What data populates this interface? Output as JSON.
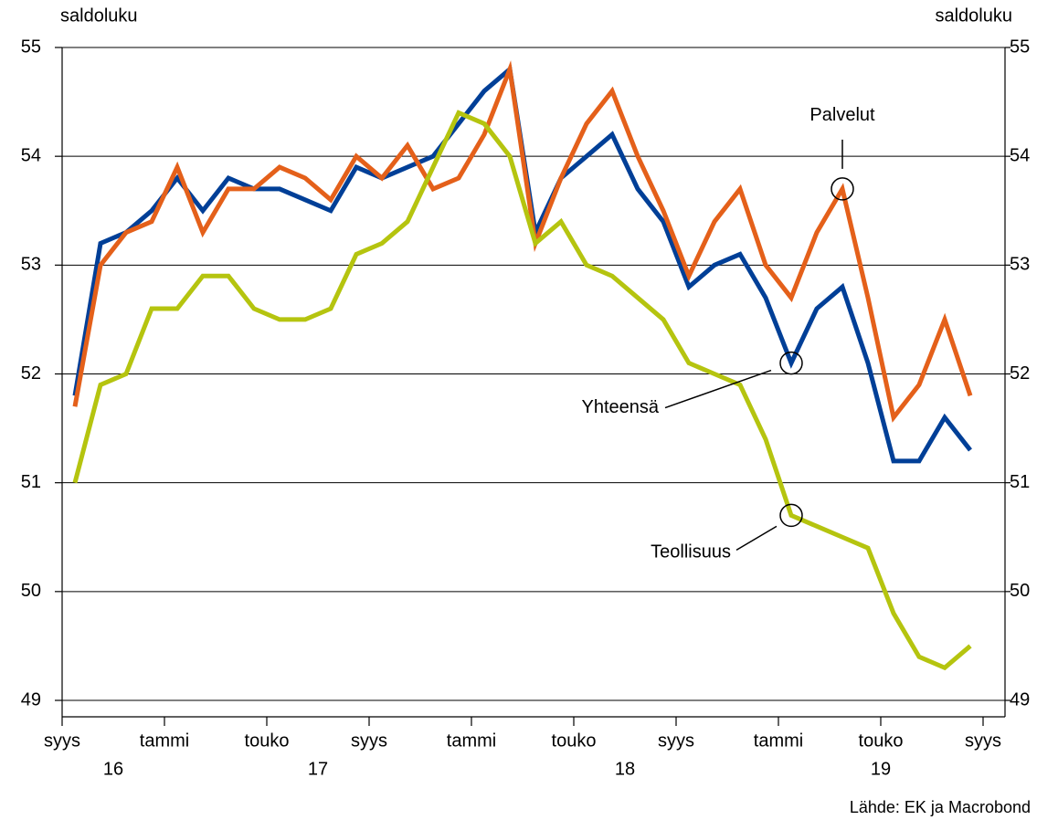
{
  "chart_data": {
    "type": "line",
    "y_axis_label": "saldoluku",
    "y2_axis_label": "saldoluku",
    "source": "Lähde: EK ja Macrobond",
    "x": [
      "2016-09",
      "2016-10",
      "2016-11",
      "2016-12",
      "2017-01",
      "2017-02",
      "2017-03",
      "2017-04",
      "2017-05",
      "2017-06",
      "2017-07",
      "2017-08",
      "2017-09",
      "2017-10",
      "2017-11",
      "2017-12",
      "2018-01",
      "2018-02",
      "2018-03",
      "2018-04",
      "2018-05",
      "2018-06",
      "2018-07",
      "2018-08",
      "2018-09",
      "2018-10",
      "2018-11",
      "2018-12",
      "2019-01",
      "2019-02",
      "2019-03",
      "2019-04",
      "2019-05",
      "2019-06",
      "2019-07",
      "2019-08"
    ],
    "series": [
      {
        "name": "Yhteensä",
        "color": "#003f97",
        "values": [
          51.8,
          53.2,
          53.3,
          53.5,
          53.8,
          53.5,
          53.8,
          53.7,
          53.7,
          53.6,
          53.5,
          53.9,
          53.8,
          53.9,
          54.0,
          54.3,
          54.6,
          54.8,
          53.3,
          53.8,
          54.0,
          54.2,
          53.7,
          53.4,
          52.8,
          53.0,
          53.1,
          52.7,
          52.1,
          52.6,
          52.8,
          52.1,
          51.2,
          51.2,
          51.6,
          51.3
        ]
      },
      {
        "name": "Palvelut",
        "color": "#e4601a",
        "values": [
          51.7,
          53.0,
          53.3,
          53.4,
          53.9,
          53.3,
          53.7,
          53.7,
          53.9,
          53.8,
          53.6,
          54.0,
          53.8,
          54.1,
          53.7,
          53.8,
          54.2,
          54.8,
          53.2,
          53.8,
          54.3,
          54.6,
          54.0,
          53.5,
          52.9,
          53.4,
          53.7,
          53.0,
          52.7,
          53.3,
          53.7,
          52.7,
          51.6,
          51.9,
          52.5,
          51.8
        ]
      },
      {
        "name": "Teollisuus",
        "color": "#b5c40f",
        "values": [
          51.0,
          51.9,
          52.0,
          52.6,
          52.6,
          52.9,
          52.9,
          52.6,
          52.5,
          52.5,
          52.6,
          53.1,
          53.2,
          53.4,
          53.9,
          54.4,
          54.3,
          54.0,
          53.2,
          53.4,
          53.0,
          52.9,
          52.7,
          52.5,
          52.1,
          52.0,
          51.9,
          51.4,
          50.7,
          50.6,
          50.5,
          50.4,
          49.8,
          49.4,
          49.3,
          49.5
        ]
      }
    ],
    "annotations": [
      {
        "text": "Palvelut",
        "series": 1,
        "index": 30
      },
      {
        "text": "Yhteensä",
        "series": 0,
        "index": 28
      },
      {
        "text": "Teollisuus",
        "series": 2,
        "index": 28
      }
    ],
    "xticks": [
      {
        "value": "2016-09",
        "label": "syys"
      },
      {
        "value": "2017-01",
        "label": "tammi"
      },
      {
        "value": "2017-05",
        "label": "touko"
      },
      {
        "value": "2017-09",
        "label": "syys"
      },
      {
        "value": "2018-01",
        "label": "tammi"
      },
      {
        "value": "2018-05",
        "label": "touko"
      },
      {
        "value": "2018-09",
        "label": "syys"
      },
      {
        "value": "2019-01",
        "label": "tammi"
      },
      {
        "value": "2019-05",
        "label": "touko"
      },
      {
        "value": "2019-09",
        "label": "syys"
      }
    ],
    "year_labels": [
      {
        "value": "2016",
        "label": "16"
      },
      {
        "value": "2017",
        "label": "17"
      },
      {
        "value": "2018",
        "label": "18"
      },
      {
        "value": "2019",
        "label": "19"
      }
    ],
    "ylim": [
      49,
      55
    ],
    "yticks": [
      49,
      50,
      51,
      52,
      53,
      54,
      55
    ],
    "y2lim": [
      49,
      55
    ],
    "y2ticks": [
      49,
      50,
      51,
      52,
      53,
      54,
      55
    ],
    "grid": true
  }
}
